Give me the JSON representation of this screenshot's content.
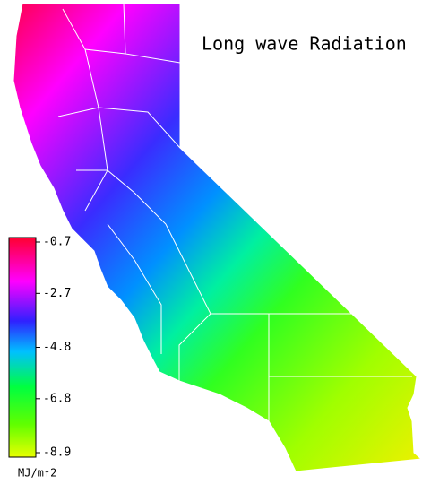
{
  "title": "Long wave Radiation",
  "colorbar": {
    "lim": [
      -8.9,
      -0.7
    ],
    "ticks": [
      -0.7,
      -2.7,
      -4.8,
      -6.8,
      -8.9
    ],
    "label": "MJ/m↑2"
  }
}
